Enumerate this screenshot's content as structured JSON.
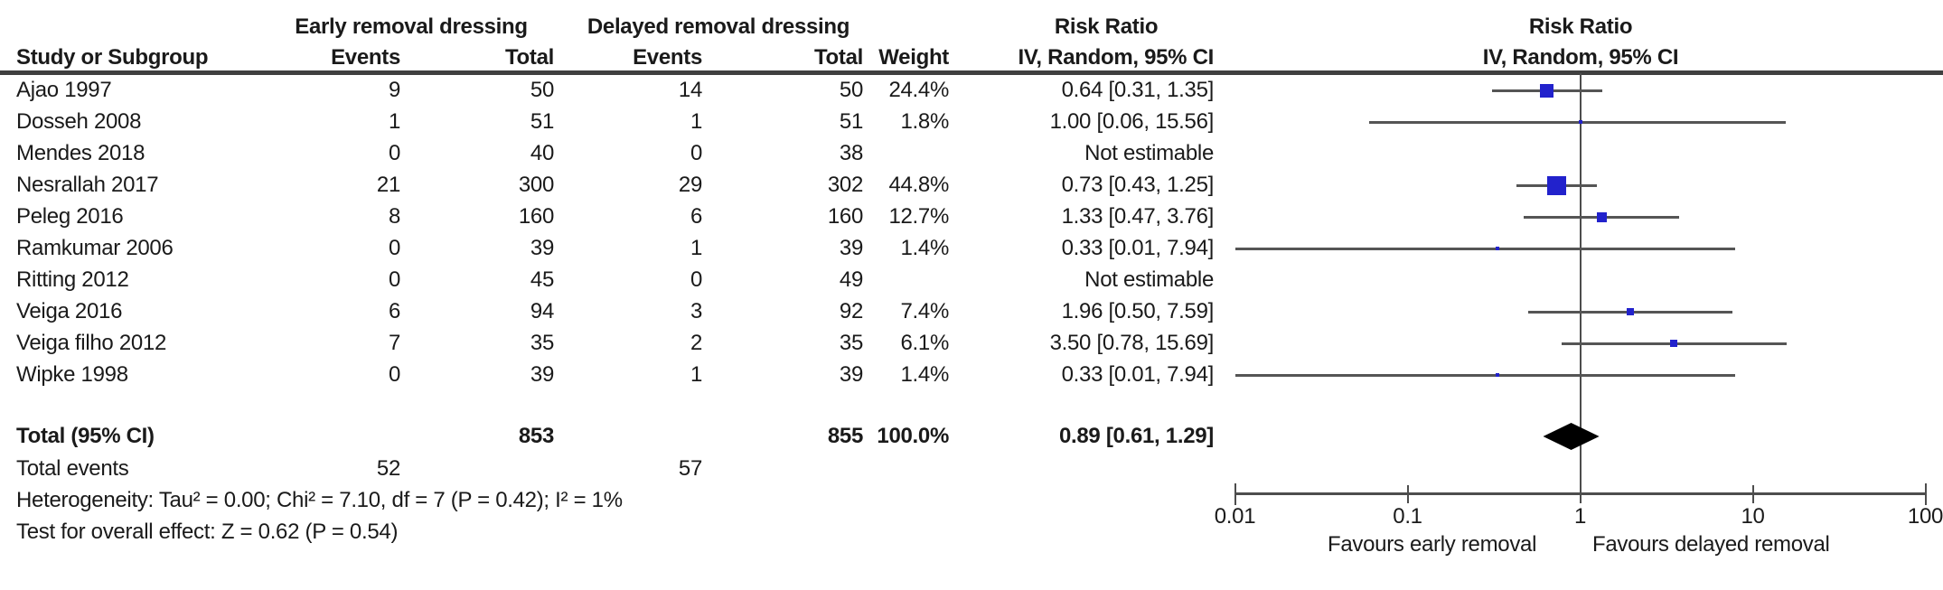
{
  "header": {
    "study": "Study or Subgroup",
    "group_early": "Early removal dressing",
    "group_delayed": "Delayed removal dressing",
    "events": "Events",
    "total": "Total",
    "weight": "Weight",
    "risk_ratio": "Risk Ratio",
    "method": "IV, Random, 95% CI"
  },
  "chart_data": {
    "type": "forest",
    "effect_measure": "Risk Ratio",
    "model": "IV, Random, 95% CI",
    "x_scale": "log10",
    "x_ticks": [
      0.01,
      0.1,
      1,
      10,
      100
    ],
    "null_line": 1,
    "favours_left": "Favours early removal",
    "favours_right": "Favours delayed removal",
    "studies": [
      {
        "name": "Ajao 1997",
        "events_early": "9",
        "total_early": "50",
        "events_delayed": "14",
        "total_delayed": "50",
        "weight": "24.4%",
        "weight_pct": 24.4,
        "ci_text": "0.64 [0.31, 1.35]",
        "rr": 0.64,
        "lo": 0.31,
        "hi": 1.35,
        "estimable": true
      },
      {
        "name": "Dosseh 2008",
        "events_early": "1",
        "total_early": "51",
        "events_delayed": "1",
        "total_delayed": "51",
        "weight": "1.8%",
        "weight_pct": 1.8,
        "ci_text": "1.00 [0.06, 15.56]",
        "rr": 1.0,
        "lo": 0.06,
        "hi": 15.56,
        "estimable": true
      },
      {
        "name": "Mendes 2018",
        "events_early": "0",
        "total_early": "40",
        "events_delayed": "0",
        "total_delayed": "38",
        "weight": "",
        "weight_pct": null,
        "ci_text": "Not estimable",
        "rr": null,
        "lo": null,
        "hi": null,
        "estimable": false
      },
      {
        "name": "Nesrallah 2017",
        "events_early": "21",
        "total_early": "300",
        "events_delayed": "29",
        "total_delayed": "302",
        "weight": "44.8%",
        "weight_pct": 44.8,
        "ci_text": "0.73 [0.43, 1.25]",
        "rr": 0.73,
        "lo": 0.43,
        "hi": 1.25,
        "estimable": true
      },
      {
        "name": "Peleg 2016",
        "events_early": "8",
        "total_early": "160",
        "events_delayed": "6",
        "total_delayed": "160",
        "weight": "12.7%",
        "weight_pct": 12.7,
        "ci_text": "1.33 [0.47, 3.76]",
        "rr": 1.33,
        "lo": 0.47,
        "hi": 3.76,
        "estimable": true
      },
      {
        "name": "Ramkumar 2006",
        "events_early": "0",
        "total_early": "39",
        "events_delayed": "1",
        "total_delayed": "39",
        "weight": "1.4%",
        "weight_pct": 1.4,
        "ci_text": "0.33 [0.01, 7.94]",
        "rr": 0.33,
        "lo": 0.01,
        "hi": 7.94,
        "estimable": true
      },
      {
        "name": "Ritting 2012",
        "events_early": "0",
        "total_early": "45",
        "events_delayed": "0",
        "total_delayed": "49",
        "weight": "",
        "weight_pct": null,
        "ci_text": "Not estimable",
        "rr": null,
        "lo": null,
        "hi": null,
        "estimable": false
      },
      {
        "name": "Veiga 2016",
        "events_early": "6",
        "total_early": "94",
        "events_delayed": "3",
        "total_delayed": "92",
        "weight": "7.4%",
        "weight_pct": 7.4,
        "ci_text": "1.96 [0.50, 7.59]",
        "rr": 1.96,
        "lo": 0.5,
        "hi": 7.59,
        "estimable": true
      },
      {
        "name": "Veiga filho 2012",
        "events_early": "7",
        "total_early": "35",
        "events_delayed": "2",
        "total_delayed": "35",
        "weight": "6.1%",
        "weight_pct": 6.1,
        "ci_text": "3.50 [0.78, 15.69]",
        "rr": 3.5,
        "lo": 0.78,
        "hi": 15.69,
        "estimable": true
      },
      {
        "name": "Wipke 1998",
        "events_early": "0",
        "total_early": "39",
        "events_delayed": "1",
        "total_delayed": "39",
        "weight": "1.4%",
        "weight_pct": 1.4,
        "ci_text": "0.33 [0.01, 7.94]",
        "rr": 0.33,
        "lo": 0.01,
        "hi": 7.94,
        "estimable": true
      }
    ],
    "total_row": {
      "label": "Total (95% CI)",
      "total_early": "853",
      "total_delayed": "855",
      "weight": "100.0%",
      "ci_text": "0.89 [0.61, 1.29]",
      "rr": 0.89,
      "lo": 0.61,
      "hi": 1.29
    },
    "total_events": {
      "label": "Total events",
      "early": "52",
      "delayed": "57"
    },
    "heterogeneity": "Heterogeneity: Tau² = 0.00; Chi² = 7.10, df = 7 (P = 0.42); I² = 1%",
    "overall_effect": "Test for overall effect: Z = 0.62 (P = 0.54)",
    "colors": {
      "marker": "#2222cc",
      "ci_line": "#555555",
      "axis": "#4d4d4d",
      "diamond": "#000000",
      "text": "#1a1a1a"
    }
  }
}
